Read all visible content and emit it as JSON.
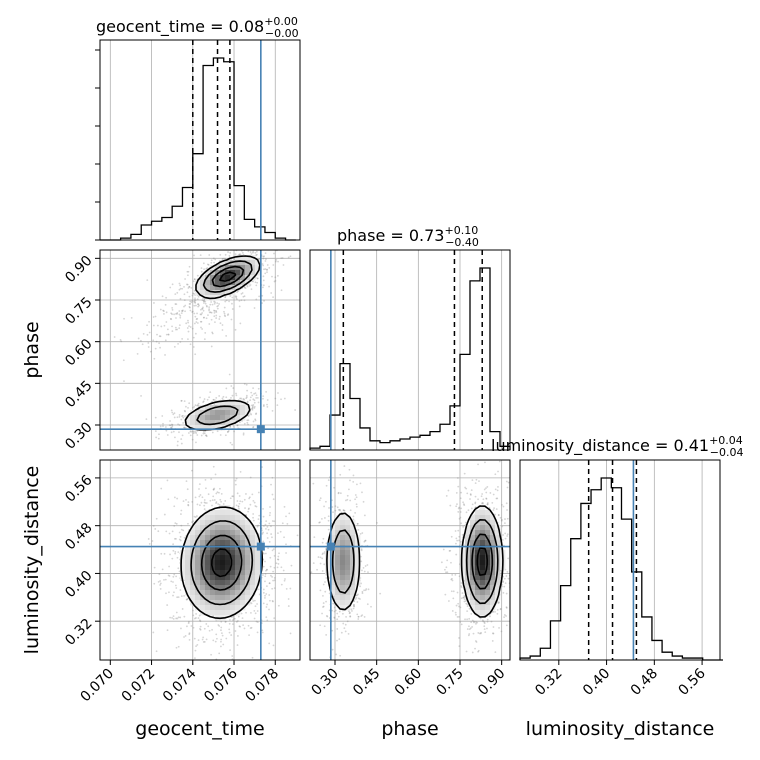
{
  "chart_data": {
    "type": "corner",
    "parameters": [
      "geocent_time",
      "phase",
      "luminosity_distance"
    ],
    "truths": {
      "geocent_time": 0.0773,
      "phase": 0.285,
      "luminosity_distance": 0.445
    },
    "titles": {
      "geocent_time": {
        "label": "geocent_time = 0.08",
        "sup": "+0.00",
        "sub": "−0.00"
      },
      "phase": {
        "label": "phase = 0.73",
        "sup": "+0.10",
        "sub": "−0.40"
      },
      "luminosity_distance": {
        "label": "luminosity_distance = 0.41",
        "sup": "+0.04",
        "sub": "−0.04"
      }
    },
    "axes": {
      "geocent_time": {
        "range": [
          0.0695,
          0.0792
        ],
        "ticks": [
          "0.070",
          "0.072",
          "0.074",
          "0.076",
          "0.078"
        ],
        "tick_values": [
          0.07,
          0.072,
          0.074,
          0.076,
          0.078
        ]
      },
      "phase": {
        "range": [
          0.21,
          0.93
        ],
        "ticks": [
          "0.30",
          "0.45",
          "0.60",
          "0.75",
          "0.90"
        ],
        "tick_values": [
          0.3,
          0.45,
          0.6,
          0.75,
          0.9
        ]
      },
      "luminosity_distance": {
        "range": [
          0.255,
          0.59
        ],
        "ticks": [
          "0.32",
          "0.40",
          "0.48",
          "0.56"
        ],
        "tick_values": [
          0.32,
          0.4,
          0.48,
          0.56
        ]
      }
    },
    "histograms": {
      "geocent_time": {
        "quantiles": [
          0.074,
          0.0752,
          0.0758
        ],
        "bin_edges": [
          0.0695,
          0.07,
          0.0705,
          0.071,
          0.0715,
          0.072,
          0.0725,
          0.073,
          0.0735,
          0.074,
          0.0745,
          0.075,
          0.0755,
          0.076,
          0.0765,
          0.077,
          0.0775,
          0.078,
          0.0785,
          0.079
        ],
        "counts": [
          0,
          0,
          1,
          3,
          8,
          10,
          12,
          18,
          28,
          46,
          93,
          97,
          95,
          29,
          11,
          7,
          4,
          1,
          0
        ]
      },
      "phase": {
        "quantiles": [
          0.33,
          0.73,
          0.83
        ],
        "bin_edges": [
          0.21,
          0.246,
          0.282,
          0.318,
          0.354,
          0.39,
          0.426,
          0.462,
          0.498,
          0.534,
          0.57,
          0.606,
          0.642,
          0.678,
          0.714,
          0.75,
          0.786,
          0.822,
          0.858,
          0.894,
          0.93
        ],
        "counts": [
          1,
          2,
          19,
          47,
          28,
          12,
          5,
          4,
          5,
          6,
          7,
          8,
          10,
          14,
          24,
          52,
          92,
          99,
          10,
          2
        ]
      },
      "luminosity_distance": {
        "quantiles": [
          0.37,
          0.41,
          0.45
        ],
        "bin_edges": [
          0.255,
          0.272,
          0.289,
          0.306,
          0.323,
          0.34,
          0.357,
          0.374,
          0.391,
          0.408,
          0.425,
          0.442,
          0.459,
          0.476,
          0.493,
          0.51,
          0.527,
          0.544,
          0.561,
          0.578,
          0.595
        ],
        "counts": [
          1,
          2,
          6,
          20,
          38,
          62,
          80,
          87,
          93,
          88,
          72,
          45,
          22,
          10,
          4,
          2,
          1,
          1,
          0,
          0
        ]
      }
    },
    "density_2d": {
      "phase_vs_geocent_time": {
        "modes": [
          {
            "x": 0.0757,
            "y": 0.835,
            "sx": 0.00075,
            "sy": 0.035,
            "rho": 0.55,
            "w": 0.55
          },
          {
            "x": 0.074,
            "y": 0.68,
            "sx": 0.0012,
            "sy": 0.05,
            "rho": 0.7,
            "w": 0.12
          },
          {
            "x": 0.0752,
            "y": 0.335,
            "sx": 0.0009,
            "sy": 0.03,
            "rho": 0.45,
            "w": 0.33
          }
        ]
      },
      "luminosity_distance_vs_geocent_time": {
        "modes": [
          {
            "x": 0.0754,
            "y": 0.418,
            "sx": 0.00095,
            "sy": 0.045,
            "rho": 0.05,
            "w": 1.0
          }
        ]
      },
      "luminosity_distance_vs_phase": {
        "modes": [
          {
            "x": 0.33,
            "y": 0.42,
            "sx": 0.032,
            "sy": 0.045,
            "rho": 0.0,
            "w": 0.35
          },
          {
            "x": 0.83,
            "y": 0.42,
            "sx": 0.035,
            "sy": 0.045,
            "rho": 0.0,
            "w": 0.65
          }
        ]
      }
    },
    "colors": {
      "truth": "#4682b4",
      "line": "#000000",
      "grid": "#b0b0b0",
      "scatter": "#888888"
    }
  }
}
